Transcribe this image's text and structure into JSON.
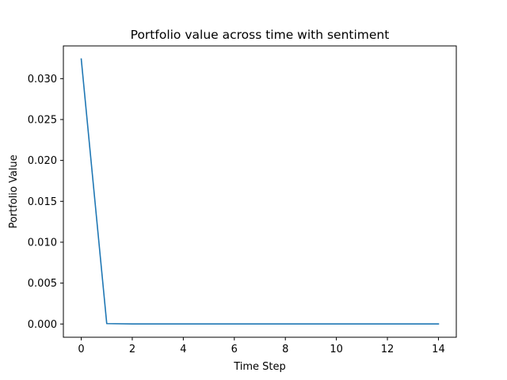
{
  "chart_data": {
    "type": "line",
    "title": "Portfolio value across time with sentiment",
    "xlabel": "Time Step",
    "ylabel": "Portfolio Value",
    "xlim": [
      -0.7,
      14.7
    ],
    "ylim": [
      -0.00162,
      0.034
    ],
    "x_ticks": [
      0,
      2,
      4,
      6,
      8,
      10,
      12,
      14
    ],
    "x_tick_labels": [
      "0",
      "2",
      "4",
      "6",
      "8",
      "10",
      "12",
      "14"
    ],
    "y_ticks": [
      0.0,
      0.005,
      0.01,
      0.015,
      0.02,
      0.025,
      0.03
    ],
    "y_tick_labels": [
      "0.000",
      "0.005",
      "0.010",
      "0.015",
      "0.020",
      "0.025",
      "0.030"
    ],
    "grid": false,
    "legend": "none",
    "series": [
      {
        "color": "#1f77b4",
        "x": [
          0,
          1,
          2,
          3,
          4,
          5,
          6,
          7,
          8,
          9,
          10,
          11,
          12,
          13,
          14
        ],
        "y": [
          0.0324,
          5e-05,
          1e-05,
          1e-05,
          1e-05,
          1e-05,
          1e-05,
          1e-05,
          1e-05,
          1e-05,
          1e-05,
          1e-05,
          1e-05,
          1e-05,
          1e-05
        ]
      }
    ]
  }
}
